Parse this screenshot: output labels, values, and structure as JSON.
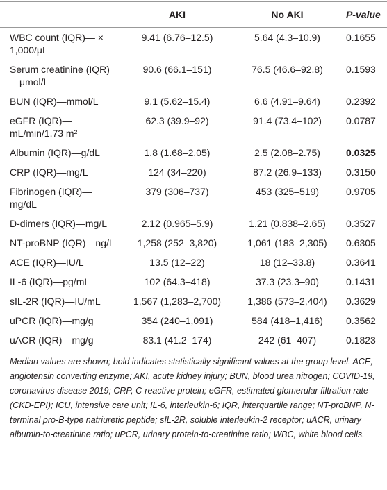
{
  "table": {
    "header": [
      "",
      "AKI",
      "No AKI",
      "P-value"
    ],
    "rows": [
      {
        "cells": [
          "WBC count (IQR)— × 1,000/μL",
          "9.41 (6.76–12.5)",
          "5.64 (4.3–10.9)",
          "0.1655"
        ]
      },
      {
        "cells": [
          "Serum creatinine (IQR)—μmol/L",
          "90.6 (66.1–151)",
          "76.5 (46.6–92.8)",
          "0.1593"
        ]
      },
      {
        "cells": [
          "BUN (IQR)—mmol/L",
          "9.1 (5.62–15.4)",
          "6.6 (4.91–9.64)",
          "0.2392"
        ]
      },
      {
        "cells": [
          "eGFR (IQR)—mL/min/1.73 m²",
          "62.3 (39.9–92)",
          "91.4 (73.4–102)",
          "0.0787"
        ]
      },
      {
        "cells": [
          "Albumin (IQR)—g/dL",
          "1.8 (1.68–2.05)",
          "2.5 (2.08–2.75)",
          "0.0325"
        ],
        "bold_p": true
      },
      {
        "cells": [
          "CRP (IQR)—mg/L",
          "124 (34–220)",
          "87.2 (26.9–133)",
          "0.3150"
        ]
      },
      {
        "cells": [
          "Fibrinogen (IQR)—mg/dL",
          "379 (306–737)",
          "453 (325–519)",
          "0.9705"
        ]
      },
      {
        "cells": [
          "D-dimers (IQR)—mg/L",
          "2.12 (0.965–5.9)",
          "1.21 (0.838–2.65)",
          "0.3527"
        ]
      },
      {
        "cells": [
          "NT-proBNP (IQR)—ng/L",
          "1,258 (252–3,820)",
          "1,061 (183–2,305)",
          "0.6305"
        ]
      },
      {
        "cells": [
          "ACE (IQR)—IU/L",
          "13.5 (12–22)",
          "18 (12–33.8)",
          "0.3641"
        ]
      },
      {
        "cells": [
          "IL-6 (IQR)—pg/mL",
          "102 (64.3–418)",
          "37.3 (23.3–90)",
          "0.1431"
        ]
      },
      {
        "cells": [
          "sIL-2R (IQR)—IU/mL",
          "1,567 (1,283–2,700)",
          "1,386 (573–2,404)",
          "0.3629"
        ]
      },
      {
        "cells": [
          "uPCR (IQR)—mg/g",
          "354 (240–1,091)",
          "584 (418–1,416)",
          "0.3562"
        ]
      },
      {
        "cells": [
          "uACR (IQR)—mg/g",
          "83.1 (41.2–174)",
          "242 (61–407)",
          "0.1823"
        ]
      }
    ],
    "footnote": "Median values are shown; bold indicates statistically significant values at the group level. ACE, angiotensin converting enzyme; AKI, acute kidney injury; BUN, blood urea nitrogen; COVID-19, coronavirus disease 2019; CRP, C-reactive protein; eGFR, estimated glomerular filtration rate (CKD-EPI); ICU, intensive care unit; IL-6, interleukin-6; IQR, interquartile range; NT-proBNP, N-terminal pro-B-type natriuretic peptide; sIL-2R, soluble interleukin-2 receptor; uACR, urinary albumin-to-creatinine ratio; uPCR, urinary protein-to-creatinine ratio; WBC, white blood cells."
  }
}
